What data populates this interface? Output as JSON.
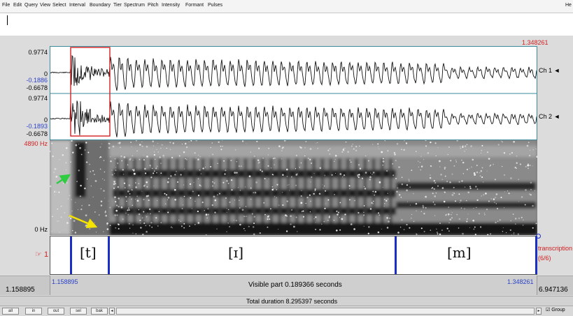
{
  "menu": [
    "File",
    "Edit",
    "Query",
    "View",
    "Select",
    "Interval",
    "Boundary",
    "Tier",
    "Spectrum",
    "Pitch",
    "Intensity",
    "Formant",
    "Pulses"
  ],
  "help_label": "He",
  "cursor_time": "1.348261",
  "channels": [
    {
      "max": "0.9774",
      "zero": "0",
      "cursor_value": "-0.1886",
      "min": "-0.6678",
      "name": "Ch 1",
      "arrow": "◄"
    },
    {
      "max": "0.9774",
      "zero": "0",
      "cursor_value": "-0.1893",
      "min": "-0.6678",
      "name": "Ch 2",
      "arrow": "◄"
    }
  ],
  "spectrogram": {
    "max_freq": "4890 Hz",
    "min_freq": "0 Hz"
  },
  "tier": {
    "number": "1",
    "pointer_icon": "☞",
    "name": "transcription",
    "count": "(6/6)",
    "intervals": [
      {
        "label": "[t]"
      },
      {
        "label": "[ɪ]"
      },
      {
        "label": "[m]"
      }
    ]
  },
  "time": {
    "window_start": "1.158895",
    "window_end": "6.947136",
    "sel_start": "1.158895",
    "sel_end": "1.348261",
    "visible_part": "Visible part 0.189366 seconds",
    "total_duration": "Total duration 8.295397 seconds"
  },
  "buttons": {
    "all": "all",
    "in": "in",
    "out": "out",
    "sel": "sel",
    "bak": "bak",
    "scroll_left": "◂",
    "scroll_right": "▸",
    "group": "Group",
    "group_checked": "☑"
  },
  "colors": {
    "selection_box": "#d42020",
    "boundary": "#1c2fc4",
    "green_arrow": "#2ecc40",
    "yellow_arrow": "#f5e400"
  }
}
